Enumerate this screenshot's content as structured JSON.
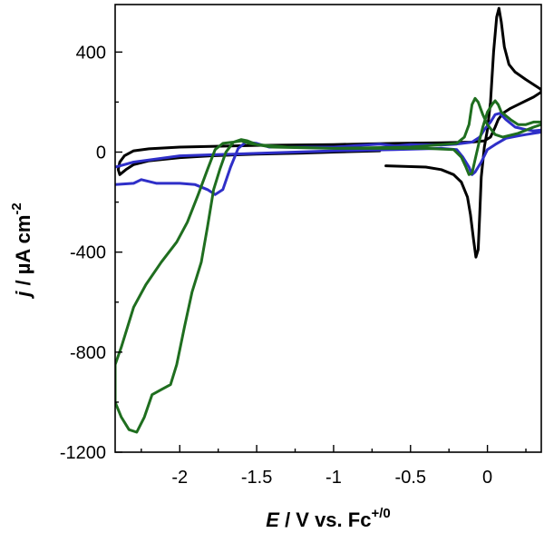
{
  "chart_data": {
    "type": "line",
    "title": "",
    "xlabel": {
      "italic": "E",
      "text": " / V vs. Fc",
      "superscript": "+/0"
    },
    "ylabel": {
      "italic": "j",
      "text": " / µA cm",
      "superscript": "-2"
    },
    "xlim": [
      -2.42,
      0.35
    ],
    "ylim": [
      -1200,
      590
    ],
    "x_ticks": [
      -2,
      -1.5,
      -1,
      -0.5,
      0
    ],
    "x_tick_labels": [
      "-2",
      "-1.5",
      "-1",
      "-0.5",
      "0"
    ],
    "y_ticks": [
      400,
      0,
      -400,
      -800,
      -1200
    ],
    "y_tick_labels": [
      "400",
      "0",
      "-400",
      "-800",
      "-1200"
    ],
    "grid": false,
    "legend": "none",
    "series": [
      {
        "color": "#000000",
        "points": [
          [
            -0.66,
            -55
          ],
          [
            -0.4,
            -60
          ],
          [
            -0.3,
            -70
          ],
          [
            -0.22,
            -90
          ],
          [
            -0.17,
            -120
          ],
          [
            -0.13,
            -180
          ],
          [
            -0.11,
            -250
          ],
          [
            -0.09,
            -350
          ],
          [
            -0.075,
            -420
          ],
          [
            -0.06,
            -390
          ],
          [
            -0.05,
            -250
          ],
          [
            -0.04,
            -100
          ],
          [
            -0.02,
            20
          ],
          [
            0.0,
            90
          ],
          [
            0.02,
            200
          ],
          [
            0.04,
            400
          ],
          [
            0.06,
            540
          ],
          [
            0.075,
            575
          ],
          [
            0.09,
            520
          ],
          [
            0.11,
            420
          ],
          [
            0.14,
            350
          ],
          [
            0.18,
            320
          ],
          [
            0.25,
            290
          ],
          [
            0.35,
            250
          ],
          [
            0.35,
            240
          ],
          [
            0.3,
            220
          ],
          [
            0.25,
            205
          ],
          [
            0.2,
            190
          ],
          [
            0.15,
            175
          ],
          [
            0.1,
            155
          ],
          [
            0.07,
            130
          ],
          [
            0.05,
            100
          ],
          [
            0.02,
            60
          ],
          [
            -0.02,
            45
          ],
          [
            -0.1,
            40
          ],
          [
            -0.3,
            37
          ],
          [
            -0.6,
            35
          ],
          [
            -1.0,
            30
          ],
          [
            -1.5,
            27
          ],
          [
            -2.0,
            20
          ],
          [
            -2.2,
            13
          ],
          [
            -2.3,
            5
          ],
          [
            -2.36,
            -15
          ],
          [
            -2.39,
            -40
          ],
          [
            -2.4,
            -70
          ],
          [
            -2.39,
            -90
          ],
          [
            -2.35,
            -70
          ],
          [
            -2.3,
            -50
          ],
          [
            -2.2,
            -35
          ],
          [
            -2.0,
            -22
          ],
          [
            -1.8,
            -15
          ],
          [
            -1.5,
            -8
          ],
          [
            -1.2,
            -4
          ],
          [
            -1.0,
            0
          ],
          [
            -0.7,
            5
          ]
        ]
      },
      {
        "color": "#2f2fc8",
        "points": [
          [
            -2.42,
            -130
          ],
          [
            -2.3,
            -125
          ],
          [
            -2.25,
            -110
          ],
          [
            -2.15,
            -125
          ],
          [
            -2.0,
            -125
          ],
          [
            -1.9,
            -130
          ],
          [
            -1.82,
            -150
          ],
          [
            -1.77,
            -170
          ],
          [
            -1.72,
            -150
          ],
          [
            -1.67,
            -60
          ],
          [
            -1.62,
            15
          ],
          [
            -1.57,
            40
          ],
          [
            -1.5,
            35
          ],
          [
            -1.42,
            20
          ],
          [
            -1.3,
            20
          ],
          [
            -1.0,
            20
          ],
          [
            -0.8,
            28
          ],
          [
            -0.7,
            32
          ],
          [
            -0.6,
            25
          ],
          [
            -0.5,
            30
          ],
          [
            -0.3,
            28
          ],
          [
            -0.2,
            32
          ],
          [
            -0.1,
            40
          ],
          [
            -0.05,
            60
          ],
          [
            -0.02,
            90
          ],
          [
            0.02,
            120
          ],
          [
            0.05,
            150
          ],
          [
            0.08,
            155
          ],
          [
            0.12,
            130
          ],
          [
            0.18,
            100
          ],
          [
            0.25,
            90
          ],
          [
            0.3,
            85
          ],
          [
            0.35,
            88
          ],
          [
            0.35,
            80
          ],
          [
            0.25,
            70
          ],
          [
            0.2,
            65
          ],
          [
            0.12,
            55
          ],
          [
            0.05,
            30
          ],
          [
            0.0,
            10
          ],
          [
            -0.04,
            -40
          ],
          [
            -0.08,
            -80
          ],
          [
            -0.1,
            -90
          ],
          [
            -0.12,
            -60
          ],
          [
            -0.16,
            -20
          ],
          [
            -0.2,
            10
          ],
          [
            -0.3,
            15
          ],
          [
            -0.6,
            10
          ],
          [
            -1.0,
            5
          ],
          [
            -1.5,
            -5
          ],
          [
            -2.0,
            -15
          ],
          [
            -2.3,
            -40
          ],
          [
            -2.42,
            -60
          ]
        ]
      },
      {
        "color": "#1f6e1f",
        "points": [
          [
            0.35,
            120
          ],
          [
            0.3,
            120
          ],
          [
            0.25,
            110
          ],
          [
            0.2,
            110
          ],
          [
            0.15,
            130
          ],
          [
            0.11,
            150
          ],
          [
            0.09,
            160
          ],
          [
            0.07,
            190
          ],
          [
            0.05,
            205
          ],
          [
            0.03,
            190
          ],
          [
            0.0,
            160
          ],
          [
            -0.03,
            100
          ],
          [
            -0.05,
            50
          ],
          [
            -0.08,
            -30
          ],
          [
            -0.1,
            -85
          ],
          [
            -0.12,
            -90
          ],
          [
            -0.14,
            -60
          ],
          [
            -0.17,
            -20
          ],
          [
            -0.22,
            10
          ],
          [
            -0.4,
            15
          ],
          [
            -0.6,
            15
          ],
          [
            -0.8,
            15
          ],
          [
            -1.0,
            15
          ],
          [
            -1.3,
            20
          ],
          [
            -1.5,
            30
          ],
          [
            -1.56,
            45
          ],
          [
            -1.6,
            50
          ],
          [
            -1.65,
            40
          ],
          [
            -1.7,
            0
          ],
          [
            -1.74,
            -70
          ],
          [
            -1.78,
            -150
          ],
          [
            -1.82,
            -300
          ],
          [
            -1.86,
            -440
          ],
          [
            -1.92,
            -560
          ],
          [
            -1.97,
            -700
          ],
          [
            -2.02,
            -850
          ],
          [
            -2.06,
            -930
          ],
          [
            -2.12,
            -950
          ],
          [
            -2.18,
            -970
          ],
          [
            -2.23,
            -1060
          ],
          [
            -2.28,
            -1120
          ],
          [
            -2.33,
            -1110
          ],
          [
            -2.38,
            -1060
          ],
          [
            -2.42,
            -1000
          ],
          [
            -2.42,
            -850
          ],
          [
            -2.38,
            -780
          ],
          [
            -2.3,
            -620
          ],
          [
            -2.22,
            -530
          ],
          [
            -2.12,
            -440
          ],
          [
            -2.02,
            -360
          ],
          [
            -1.95,
            -280
          ],
          [
            -1.88,
            -170
          ],
          [
            -1.82,
            -70
          ],
          [
            -1.77,
            10
          ],
          [
            -1.72,
            35
          ],
          [
            -1.65,
            40
          ],
          [
            -1.6,
            45
          ],
          [
            -1.55,
            35
          ],
          [
            -1.4,
            20
          ],
          [
            -1.0,
            15
          ],
          [
            -0.5,
            20
          ],
          [
            -0.2,
            35
          ],
          [
            -0.15,
            60
          ],
          [
            -0.12,
            110
          ],
          [
            -0.1,
            190
          ],
          [
            -0.08,
            215
          ],
          [
            -0.06,
            200
          ],
          [
            -0.03,
            150
          ],
          [
            0.0,
            110
          ],
          [
            0.05,
            70
          ],
          [
            0.1,
            60
          ],
          [
            0.2,
            75
          ],
          [
            0.3,
            100
          ],
          [
            0.35,
            110
          ]
        ]
      }
    ]
  }
}
